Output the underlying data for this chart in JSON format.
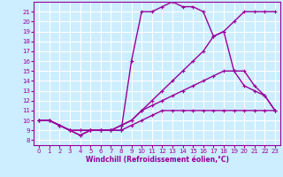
{
  "xlabel": "Windchill (Refroidissement éolien,°C)",
  "bg_color": "#cceeff",
  "grid_color": "#ffffff",
  "line_color": "#990099",
  "xlim": [
    -0.5,
    23.5
  ],
  "ylim": [
    7.5,
    22
  ],
  "xticks": [
    0,
    1,
    2,
    3,
    4,
    5,
    6,
    7,
    8,
    9,
    10,
    11,
    12,
    13,
    14,
    15,
    16,
    17,
    18,
    19,
    20,
    21,
    22,
    23
  ],
  "yticks": [
    8,
    9,
    10,
    11,
    12,
    13,
    14,
    15,
    16,
    17,
    18,
    19,
    20,
    21
  ],
  "series": [
    {
      "x": [
        0,
        1,
        2,
        3,
        4,
        5,
        6,
        7,
        8,
        9,
        10,
        11,
        12,
        13,
        14,
        15,
        16,
        17,
        18,
        19,
        20,
        21,
        22,
        23
      ],
      "y": [
        10,
        10,
        9.5,
        9,
        9,
        9,
        9,
        9,
        9,
        9.5,
        10,
        10.5,
        11,
        11,
        11,
        11,
        11,
        11,
        11,
        11,
        11,
        11,
        11,
        11
      ]
    },
    {
      "x": [
        0,
        1,
        2,
        3,
        4,
        5,
        6,
        7,
        8,
        9,
        10,
        11,
        12,
        13,
        14,
        15,
        16,
        17,
        18,
        19,
        20,
        21,
        22,
        23
      ],
      "y": [
        10,
        10,
        9.5,
        9,
        9,
        9,
        9,
        9,
        9.5,
        10,
        11,
        11.5,
        12,
        12.5,
        13,
        13.5,
        14,
        14.5,
        15,
        15,
        15,
        13.5,
        12.5,
        11
      ]
    },
    {
      "x": [
        0,
        1,
        2,
        3,
        4,
        5,
        6,
        7,
        8,
        9,
        10,
        11,
        12,
        13,
        14,
        15,
        16,
        17,
        18,
        19,
        20,
        21,
        22,
        23
      ],
      "y": [
        10,
        10,
        9.5,
        9,
        8.5,
        9,
        9,
        9,
        9.5,
        10,
        11,
        12,
        13,
        14,
        15,
        16,
        17,
        18.5,
        19,
        20,
        21,
        21,
        21,
        21
      ]
    },
    {
      "x": [
        0,
        1,
        2,
        3,
        4,
        5,
        6,
        7,
        8,
        9,
        10,
        11,
        12,
        13,
        14,
        15,
        16,
        17,
        18,
        19,
        20,
        21,
        22,
        23
      ],
      "y": [
        10,
        10,
        9.5,
        9,
        8.5,
        9,
        9,
        9,
        9,
        16,
        21,
        21,
        21.5,
        22,
        21.5,
        21.5,
        21,
        18.5,
        19,
        15,
        13.5,
        13,
        12.5,
        11
      ]
    }
  ]
}
